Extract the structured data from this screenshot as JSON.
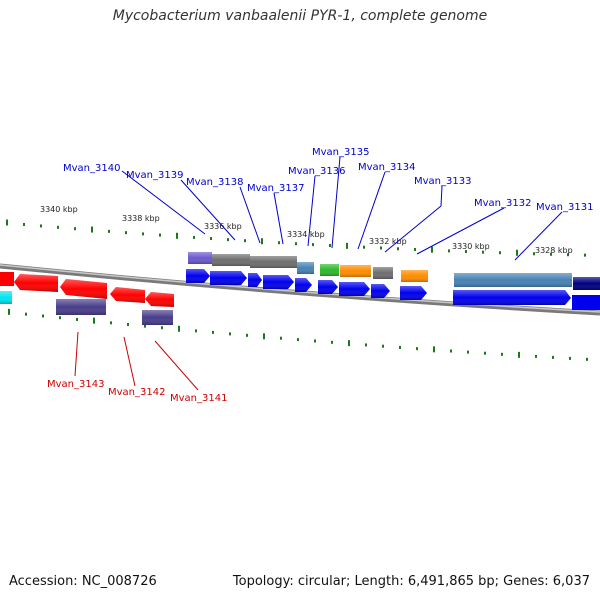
{
  "title": "Mycobacterium vanbaalenii PYR-1, complete genome",
  "footer": {
    "accession": "Accession: NC_008726",
    "summary": "Topology: circular; Length: 6,491,865 bp; Genes: 6,037"
  },
  "colors": {
    "forward_label": "#0000cc",
    "reverse_label": "#cc0000",
    "tick": "#1a7a1a",
    "backbone": "#808080"
  },
  "kbp_labels": [
    "3340 kbp",
    "3338 kbp",
    "3336 kbp",
    "3334 kbp",
    "3332 kbp",
    "3330 kbp",
    "3328 kbp"
  ],
  "forward_gene_labels": [
    "Mvan_3140",
    "Mvan_3139",
    "Mvan_3138",
    "Mvan_3137",
    "Mvan_3136",
    "Mvan_3135",
    "Mvan_3134",
    "Mvan_3133",
    "Mvan_3132",
    "Mvan_3131"
  ],
  "reverse_gene_labels": [
    "Mvan_3143",
    "Mvan_3142",
    "Mvan_3141"
  ]
}
